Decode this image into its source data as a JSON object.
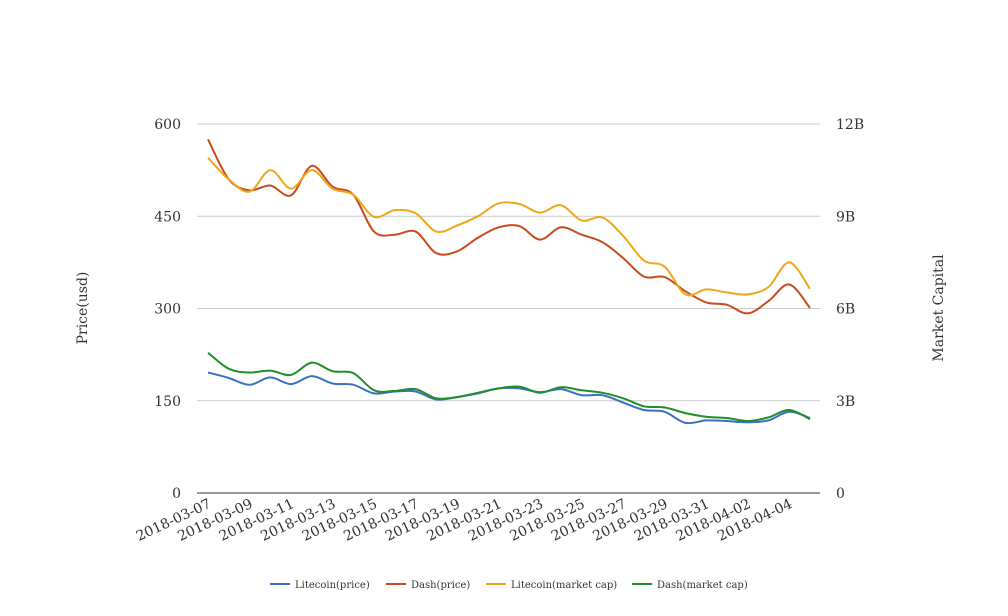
{
  "chart_data": {
    "type": "line",
    "x": [
      "2018-03-07",
      "2018-03-08",
      "2018-03-09",
      "2018-03-10",
      "2018-03-11",
      "2018-03-12",
      "2018-03-13",
      "2018-03-14",
      "2018-03-15",
      "2018-03-16",
      "2018-03-17",
      "2018-03-18",
      "2018-03-19",
      "2018-03-20",
      "2018-03-21",
      "2018-03-22",
      "2018-03-23",
      "2018-03-24",
      "2018-03-25",
      "2018-03-26",
      "2018-03-27",
      "2018-03-28",
      "2018-03-29",
      "2018-03-30",
      "2018-03-31",
      "2018-04-01",
      "2018-04-02",
      "2018-04-03",
      "2018-04-04",
      "2018-04-05"
    ],
    "x_tick_labels": [
      "2018-03-07",
      "2018-03-09",
      "2018-03-11",
      "2018-03-13",
      "2018-03-15",
      "2018-03-17",
      "2018-03-19",
      "2018-03-21",
      "2018-03-23",
      "2018-03-25",
      "2018-03-27",
      "2018-03-29",
      "2018-03-31",
      "2018-04-02",
      "2018-04-04"
    ],
    "y_left": {
      "label": "Price(usd)",
      "ticks": [
        "0",
        "150",
        "300",
        "450",
        "600"
      ],
      "lim": [
        0,
        600
      ]
    },
    "y_right": {
      "label": "Market Capital",
      "ticks": [
        "0",
        "3B",
        "6B",
        "9B",
        "12B"
      ],
      "lim": [
        0,
        12000000000
      ]
    },
    "grid": true,
    "legend_position": "bottom",
    "series": [
      {
        "name": "Litecoin(price)",
        "axis": "left",
        "color": "#3a6fc1",
        "values": [
          196,
          187,
          176,
          188,
          177,
          190,
          178,
          176,
          162,
          165,
          165,
          152,
          156,
          162,
          170,
          170,
          164,
          169,
          159,
          159,
          147,
          135,
          132,
          114,
          118,
          117,
          115,
          118,
          132,
          122
        ]
      },
      {
        "name": "Dash(price)",
        "axis": "left",
        "color": "#c84a1e",
        "values": [
          575,
          510,
          492,
          500,
          484,
          532,
          498,
          485,
          425,
          420,
          425,
          390,
          393,
          415,
          432,
          434,
          412,
          432,
          420,
          408,
          382,
          352,
          351,
          328,
          310,
          306,
          292,
          312,
          339,
          301
        ]
      },
      {
        "name": "Litecoin(market cap)",
        "axis": "right",
        "color": "#f0a616",
        "values": [
          10900000000,
          10200000000,
          9800000000,
          10500000000,
          9900000000,
          10500000000,
          9900000000,
          9700000000,
          8980000000,
          9200000000,
          9100000000,
          8500000000,
          8700000000,
          9000000000,
          9420000000,
          9400000000,
          9120000000,
          9360000000,
          8860000000,
          8960000000,
          8360000000,
          7560000000,
          7360000000,
          6460000000,
          6620000000,
          6520000000,
          6460000000,
          6700000000,
          7500000000,
          6640000000
        ]
      },
      {
        "name": "Dash(market cap)",
        "axis": "right",
        "color": "#1f8f2a",
        "values": [
          4560000000,
          4040000000,
          3920000000,
          3980000000,
          3840000000,
          4240000000,
          3960000000,
          3900000000,
          3340000000,
          3320000000,
          3380000000,
          3080000000,
          3120000000,
          3260000000,
          3400000000,
          3460000000,
          3260000000,
          3440000000,
          3340000000,
          3260000000,
          3080000000,
          2820000000,
          2780000000,
          2600000000,
          2480000000,
          2440000000,
          2340000000,
          2460000000,
          2700000000,
          2400000000
        ]
      }
    ]
  }
}
